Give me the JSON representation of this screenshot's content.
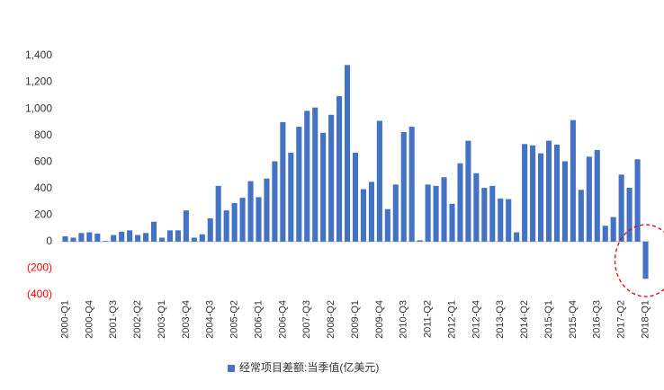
{
  "chart_data": {
    "type": "bar",
    "categories": [
      "2000-Q1",
      null,
      null,
      "2000-Q4",
      null,
      null,
      "2001-Q3",
      null,
      null,
      "2002-Q2",
      null,
      null,
      "2003-Q1",
      null,
      null,
      "2003-Q4",
      null,
      null,
      "2004-Q3",
      null,
      null,
      "2005-Q2",
      null,
      null,
      "2006-Q1",
      null,
      null,
      "2006-Q4",
      null,
      null,
      "2007-Q3",
      null,
      null,
      "2008-Q2",
      null,
      null,
      "2009-Q1",
      null,
      null,
      "2009-Q4",
      null,
      null,
      "2010-Q3",
      null,
      null,
      "2011-Q2",
      null,
      null,
      "2012-Q1",
      null,
      null,
      "2012-Q4",
      null,
      null,
      "2013-Q3",
      null,
      null,
      "2014-Q2",
      null,
      null,
      "2015-Q1",
      null,
      null,
      "2015-Q4",
      null,
      null,
      "2016-Q3",
      null,
      null,
      "2017-Q2",
      null,
      null,
      "2018-Q1"
    ],
    "series": [
      {
        "name": "经常项目差额:当季值(亿美元)",
        "color": "#4472c4",
        "values": [
          40,
          30,
          65,
          70,
          60,
          5,
          50,
          75,
          85,
          50,
          65,
          150,
          30,
          85,
          85,
          235,
          30,
          55,
          175,
          420,
          235,
          290,
          330,
          455,
          335,
          475,
          605,
          900,
          670,
          865,
          985,
          1010,
          820,
          955,
          1095,
          1330,
          670,
          395,
          450,
          910,
          245,
          430,
          825,
          865,
          10,
          430,
          420,
          485,
          285,
          590,
          760,
          515,
          405,
          420,
          325,
          320,
          70,
          735,
          725,
          665,
          760,
          730,
          605,
          915,
          390,
          640,
          690,
          120,
          185,
          505,
          405,
          620,
          -280
        ]
      }
    ],
    "ylim": [
      -400,
      1400
    ],
    "yticks": [
      {
        "value": -400,
        "label": "(400)"
      },
      {
        "value": -200,
        "label": "(200)"
      },
      0,
      200,
      400,
      600,
      800,
      {
        "value": 1000,
        "label": "1,000"
      },
      {
        "value": 1200,
        "label": "1,200"
      },
      {
        "value": 1400,
        "label": "1,400"
      }
    ],
    "negative_tick_color": "#ff0000",
    "legend": "bottom"
  }
}
